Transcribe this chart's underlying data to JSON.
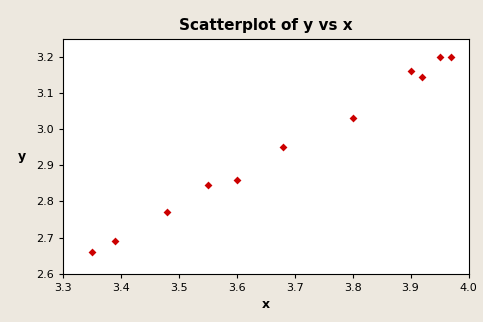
{
  "title": "Scatterplot of y vs x",
  "xlabel": "x",
  "ylabel": "y",
  "x_values": [
    3.35,
    3.39,
    3.48,
    3.55,
    3.6,
    3.68,
    3.8,
    3.9,
    3.92,
    3.95,
    3.97
  ],
  "y_values": [
    2.66,
    2.69,
    2.77,
    2.845,
    2.86,
    2.95,
    3.03,
    3.16,
    3.145,
    3.2,
    3.2
  ],
  "marker_color": "#cc0000",
  "marker": "D",
  "marker_size": 4,
  "xlim": [
    3.3,
    4.0
  ],
  "ylim": [
    2.6,
    3.25
  ],
  "xticks": [
    3.3,
    3.4,
    3.5,
    3.6,
    3.7,
    3.8,
    3.9,
    4.0
  ],
  "yticks": [
    2.6,
    2.7,
    2.8,
    2.9,
    3.0,
    3.1,
    3.2
  ],
  "background_color": "#ede8df",
  "plot_bg_color": "#ffffff",
  "title_fontsize": 11,
  "axis_label_fontsize": 9,
  "tick_fontsize": 8
}
